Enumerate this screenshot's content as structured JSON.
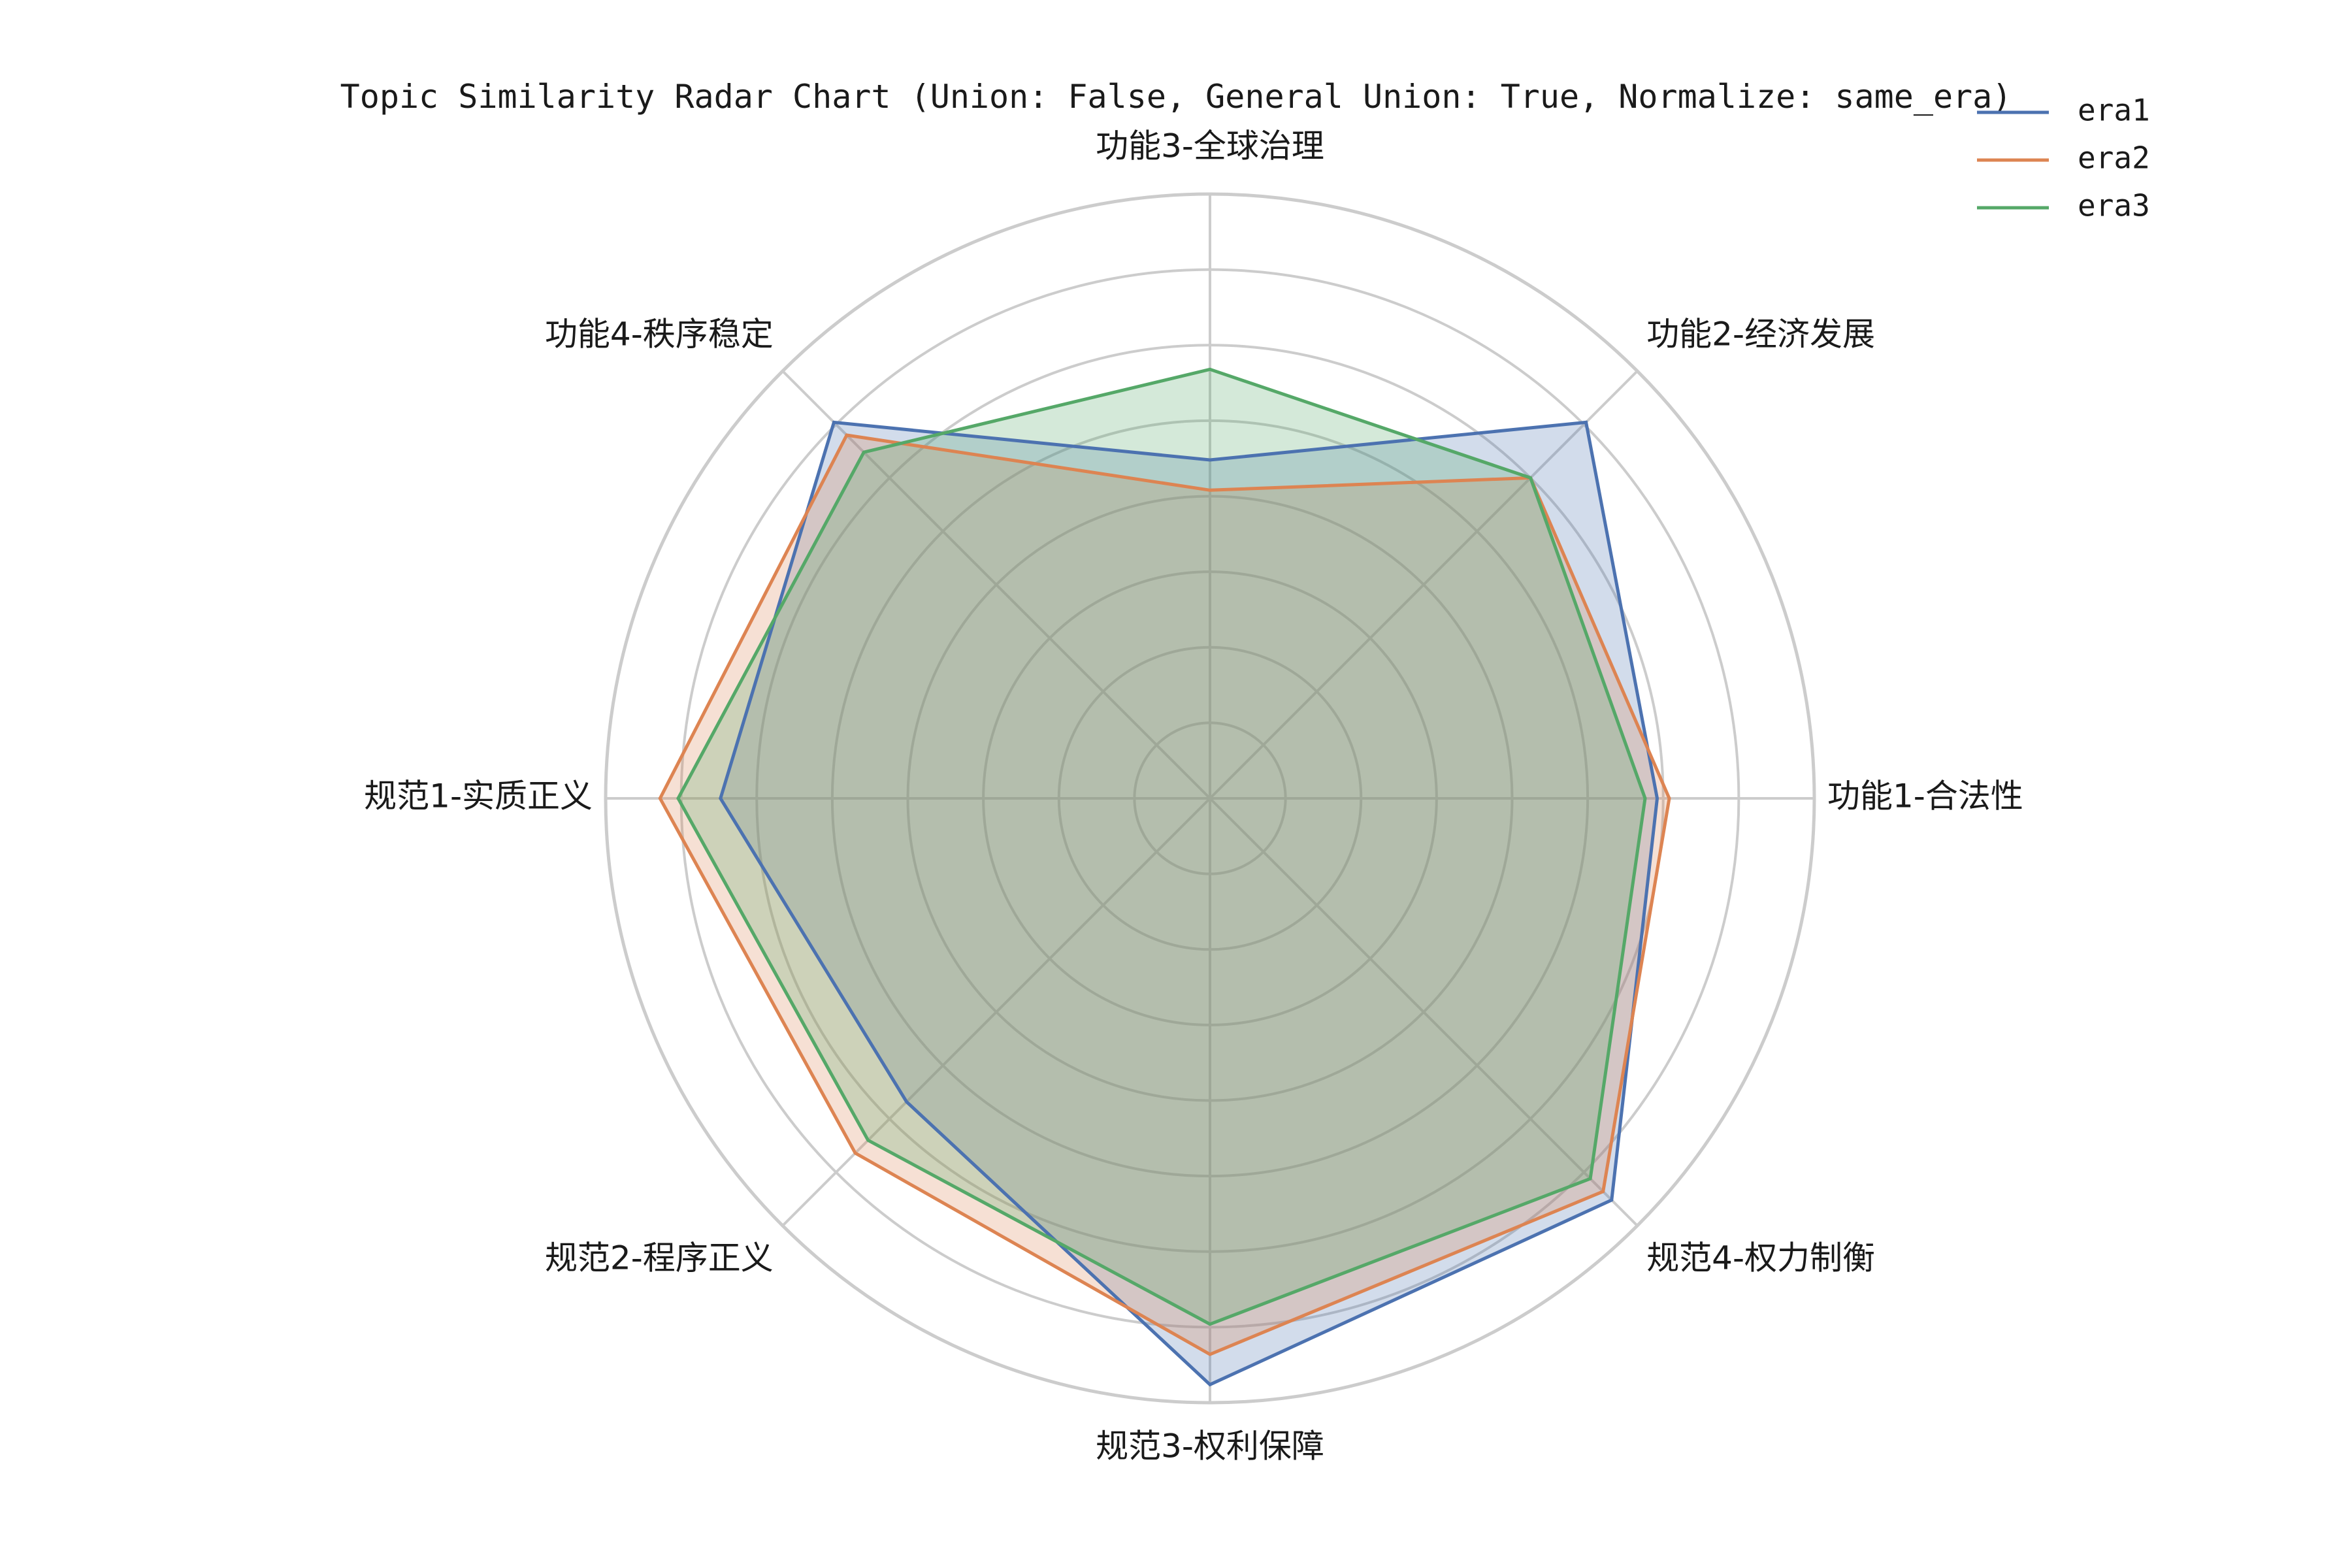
{
  "chart_data": {
    "type": "radar",
    "title": "Topic Similarity Radar Chart (Union: False, General Union: True, Normalize: same_era)",
    "categories": [
      "功能1-合法性",
      "功能2-经济发展",
      "功能3-全球治理",
      "功能4-秩序稳定",
      "规范1-实质正义",
      "规范2-程序正义",
      "规范3-权利保障",
      "规范4-权力制衡"
    ],
    "rlim": [
      0,
      1
    ],
    "grid_levels": [
      0.125,
      0.25,
      0.375,
      0.5,
      0.625,
      0.75,
      0.875,
      1.0
    ],
    "grid": true,
    "legend_position": "top-right",
    "series": [
      {
        "name": "era1",
        "color": "#4c72b0",
        "values": [
          0.74,
          0.88,
          0.56,
          0.88,
          0.81,
          0.71,
          0.97,
          0.94
        ]
      },
      {
        "name": "era2",
        "color": "#dd8452",
        "values": [
          0.76,
          0.75,
          0.51,
          0.85,
          0.91,
          0.83,
          0.92,
          0.92
        ]
      },
      {
        "name": "era3",
        "color": "#55a868",
        "values": [
          0.72,
          0.75,
          0.71,
          0.81,
          0.88,
          0.8,
          0.87,
          0.89
        ]
      }
    ]
  }
}
